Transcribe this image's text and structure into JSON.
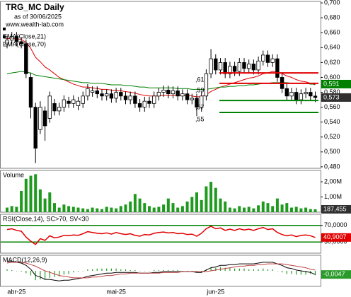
{
  "chart_data": [
    {
      "type": "candlestick",
      "title": "TRG_MC Daily",
      "subtitle": "as of 30/06/2025",
      "source": "www.wealth-lab.com",
      "categories": [
        null,
        null,
        "abr-25",
        null,
        null,
        null,
        null,
        null,
        null,
        null,
        null,
        null,
        null,
        null,
        null,
        null,
        null,
        null,
        null,
        null,
        null,
        null,
        null,
        "mai-25",
        null,
        null,
        null,
        null,
        null,
        null,
        null,
        null,
        null,
        null,
        null,
        null,
        null,
        null,
        null,
        null,
        null,
        null,
        null,
        null,
        "jun-25",
        null,
        null,
        null,
        null,
        null,
        null,
        null,
        null,
        null,
        null,
        null,
        null,
        null,
        null,
        null,
        null,
        null,
        null,
        null,
        null,
        null
      ],
      "open": [
        0.645,
        0.65,
        0.655,
        0.648,
        0.645,
        0.6,
        0.56,
        0.53,
        0.555,
        0.545,
        0.565,
        0.555,
        0.56,
        0.568,
        0.565,
        0.562,
        0.565,
        0.575,
        0.58,
        0.582,
        0.578,
        0.575,
        0.578,
        0.572,
        0.58,
        0.575,
        0.57,
        0.575,
        0.565,
        0.56,
        0.568,
        0.565,
        0.575,
        0.58,
        0.583,
        0.578,
        0.582,
        0.575,
        0.578,
        0.57,
        0.572,
        0.56,
        0.575,
        0.605,
        0.625,
        0.61,
        0.62,
        0.605,
        0.615,
        0.608,
        0.62,
        0.612,
        0.618,
        0.61,
        0.622,
        0.63,
        0.62,
        0.625,
        0.6,
        0.585,
        0.575,
        0.58,
        0.57,
        0.578,
        0.58,
        0.575
      ],
      "high": [
        0.656,
        0.661,
        0.661,
        0.654,
        0.651,
        0.606,
        0.566,
        0.568,
        0.561,
        0.581,
        0.571,
        0.566,
        0.576,
        0.574,
        0.576,
        0.574,
        0.581,
        0.591,
        0.588,
        0.588,
        0.584,
        0.584,
        0.584,
        0.586,
        0.586,
        0.581,
        0.581,
        0.581,
        0.571,
        0.574,
        0.574,
        0.581,
        0.586,
        0.589,
        0.589,
        0.588,
        0.588,
        0.584,
        0.584,
        0.578,
        0.578,
        0.581,
        0.611,
        0.638,
        0.631,
        0.626,
        0.626,
        0.621,
        0.621,
        0.626,
        0.626,
        0.624,
        0.624,
        0.628,
        0.636,
        0.636,
        0.631,
        0.631,
        0.606,
        0.591,
        0.586,
        0.586,
        0.584,
        0.586,
        0.586,
        0.581
      ],
      "low": [
        0.639,
        0.644,
        0.642,
        0.639,
        0.599,
        0.545,
        0.485,
        0.524,
        0.515,
        0.539,
        0.549,
        0.549,
        0.554,
        0.559,
        0.559,
        0.556,
        0.559,
        0.569,
        0.574,
        0.572,
        0.569,
        0.569,
        0.566,
        0.566,
        0.569,
        0.564,
        0.564,
        0.559,
        0.554,
        0.554,
        0.559,
        0.559,
        0.569,
        0.574,
        0.572,
        0.572,
        0.569,
        0.569,
        0.564,
        0.564,
        0.548,
        0.554,
        0.569,
        0.599,
        0.604,
        0.604,
        0.599,
        0.599,
        0.602,
        0.602,
        0.606,
        0.606,
        0.604,
        0.604,
        0.616,
        0.614,
        0.614,
        0.594,
        0.579,
        0.569,
        0.569,
        0.564,
        0.564,
        0.572,
        0.569,
        0.567
      ],
      "close": [
        0.65,
        0.655,
        0.648,
        0.645,
        0.605,
        0.56,
        0.505,
        0.56,
        0.535,
        0.575,
        0.555,
        0.56,
        0.57,
        0.565,
        0.57,
        0.568,
        0.575,
        0.585,
        0.582,
        0.578,
        0.575,
        0.578,
        0.572,
        0.58,
        0.575,
        0.57,
        0.575,
        0.565,
        0.56,
        0.568,
        0.565,
        0.575,
        0.58,
        0.583,
        0.578,
        0.582,
        0.575,
        0.578,
        0.57,
        0.572,
        0.56,
        0.575,
        0.605,
        0.625,
        0.61,
        0.62,
        0.605,
        0.615,
        0.608,
        0.62,
        0.612,
        0.618,
        0.61,
        0.622,
        0.63,
        0.62,
        0.625,
        0.6,
        0.585,
        0.575,
        0.58,
        0.57,
        0.578,
        0.58,
        0.575,
        0.573
      ],
      "close_label": "0,573",
      "up_color": "#009900",
      "down_color": "#e00000",
      "ylim": [
        0.478,
        0.702
      ],
      "yticks": [
        {
          "value": 0.48,
          "label": "0,480"
        },
        {
          "value": 0.5,
          "label": "0,500"
        },
        {
          "value": 0.52,
          "label": "0,520"
        },
        {
          "value": 0.54,
          "label": "0,540"
        },
        {
          "value": 0.56,
          "label": "0,560"
        },
        {
          "value": 0.58,
          "label": "0,580"
        },
        {
          "value": 0.6,
          "label": "0,600"
        },
        {
          "value": 0.62,
          "label": "0,620"
        },
        {
          "value": 0.64,
          "label": "0,640"
        },
        {
          "value": 0.66,
          "label": "0,660"
        },
        {
          "value": 0.68,
          "label": "0,680"
        },
        {
          "value": 0.7,
          "label": "0,700"
        }
      ],
      "series": [
        {
          "name": "EMA(Close,21)",
          "color": "#e00000",
          "values": [
            0.652,
            0.652,
            0.652,
            0.651,
            0.647,
            0.639,
            0.627,
            0.621,
            0.614,
            0.61,
            0.605,
            0.6,
            0.597,
            0.594,
            0.591,
            0.589,
            0.587,
            0.587,
            0.586,
            0.585,
            0.584,
            0.584,
            0.583,
            0.582,
            0.582,
            0.581,
            0.58,
            0.579,
            0.577,
            0.576,
            0.575,
            0.575,
            0.575,
            0.576,
            0.576,
            0.576,
            0.576,
            0.576,
            0.576,
            0.575,
            0.574,
            0.574,
            0.577,
            0.581,
            0.584,
            0.587,
            0.589,
            0.591,
            0.593,
            0.595,
            0.597,
            0.599,
            0.6,
            0.602,
            0.605,
            0.606,
            0.608,
            0.607,
            0.605,
            0.602,
            0.6,
            0.597,
            0.595,
            0.594,
            0.592,
            0.59
          ]
        },
        {
          "name": "EMA(Close,70)",
          "color": "#008000",
          "value_label": "0,591",
          "values": [
            0.605,
            0.606,
            0.607,
            0.608,
            0.607,
            0.606,
            0.603,
            0.602,
            0.601,
            0.6,
            0.599,
            0.598,
            0.597,
            0.596,
            0.595,
            0.594,
            0.593,
            0.593,
            0.592,
            0.592,
            0.592,
            0.591,
            0.59,
            0.59,
            0.59,
            0.589,
            0.589,
            0.588,
            0.587,
            0.587,
            0.586,
            0.586,
            0.586,
            0.586,
            0.586,
            0.586,
            0.585,
            0.585,
            0.585,
            0.584,
            0.584,
            0.584,
            0.584,
            0.585,
            0.586,
            0.587,
            0.587,
            0.588,
            0.588,
            0.589,
            0.589,
            0.59,
            0.59,
            0.591,
            0.592,
            0.592,
            0.593,
            0.593,
            0.593,
            0.593,
            0.592,
            0.592,
            0.592,
            0.592,
            0.591,
            0.591
          ]
        }
      ],
      "levels": [
        {
          "value": 0.606,
          "color": "#e00000"
        },
        {
          "value": 0.592,
          "color": "#e00000"
        },
        {
          "value": 0.569,
          "color": "#008000"
        },
        {
          "value": 0.553,
          "color": "#008000"
        }
      ],
      "annotations": [
        ",61",
        ",59",
        ",57",
        ",55"
      ]
    },
    {
      "type": "bar",
      "title": "Volume",
      "color": "#1f9a1f",
      "last_label": "187,455",
      "values": [
        300000,
        400000,
        350000,
        1400000,
        2200000,
        2400000,
        2500000,
        1500000,
        900000,
        1300000,
        600000,
        300000,
        500000,
        400000,
        350000,
        300000,
        250000,
        200000,
        300000,
        250000,
        200000,
        350000,
        300000,
        250000,
        400000,
        500000,
        700000,
        1200000,
        900000,
        600000,
        400000,
        300000,
        350000,
        500000,
        900000,
        600000,
        300000,
        400000,
        700000,
        1000000,
        1300000,
        800000,
        1700000,
        2000000,
        1600000,
        900000,
        700000,
        300000,
        250000,
        400000,
        300000,
        350000,
        250000,
        450000,
        700000,
        600000,
        400000,
        900000,
        500000,
        600000,
        300000,
        350000,
        250000,
        300000,
        200000,
        187455
      ],
      "ylim": [
        0,
        2750000
      ],
      "yticks": [
        {
          "value": 1000000,
          "label": "1,00M"
        },
        {
          "value": 2000000,
          "label": "2,00M"
        }
      ]
    },
    {
      "type": "line",
      "title": "RSI(Close,14), SC>70, SV<30",
      "color": "#e00000",
      "grid_color": "#008000",
      "last_label": "40,9007",
      "values": [
        60,
        62,
        58,
        56,
        42,
        32,
        24,
        38,
        34,
        45,
        40,
        42,
        46,
        45,
        47,
        46,
        50,
        55,
        53,
        51,
        50,
        52,
        49,
        53,
        50,
        48,
        50,
        46,
        44,
        48,
        47,
        51,
        53,
        54,
        52,
        53,
        50,
        51,
        48,
        49,
        44,
        51,
        62,
        68,
        62,
        64,
        58,
        61,
        58,
        62,
        59,
        61,
        58,
        62,
        65,
        60,
        62,
        53,
        48,
        45,
        47,
        43,
        46,
        47,
        45,
        40.9007
      ],
      "ylim": [
        3,
        97
      ],
      "yticks": [
        {
          "value": 30,
          "label": "30,0000"
        },
        {
          "value": 70,
          "label": "70,0000"
        }
      ]
    },
    {
      "type": "macd",
      "title": "MACD(12,26,9)",
      "last_label": "-0,0047",
      "series": [
        {
          "color": "#000000",
          "values": [
            0.012,
            0.012,
            0.011,
            0.01,
            0.007,
            0.002,
            -0.006,
            -0.008,
            -0.011,
            -0.011,
            -0.012,
            -0.013,
            -0.012,
            -0.012,
            -0.011,
            -0.01,
            -0.009,
            -0.007,
            -0.006,
            -0.005,
            -0.004,
            -0.003,
            -0.003,
            -0.002,
            -0.002,
            -0.002,
            -0.002,
            -0.002,
            -0.003,
            -0.003,
            -0.003,
            -0.002,
            -0.002,
            -0.001,
            -0.001,
            -0.001,
            -0.001,
            -0.001,
            -0.001,
            -0.001,
            -0.002,
            -0.002,
            0.001,
            0.004,
            0.005,
            0.007,
            0.007,
            0.008,
            0.008,
            0.009,
            0.009,
            0.009,
            0.009,
            0.01,
            0.011,
            0.011,
            0.011,
            0.009,
            0.007,
            0.004,
            0.003,
            0.001,
            0.0,
            -0.001,
            -0.002,
            -0.0047
          ]
        },
        {
          "color": "#c04040",
          "values": [
            0.01,
            0.011,
            0.011,
            0.011,
            0.01,
            0.008,
            0.006,
            0.003,
            0.0,
            -0.002,
            -0.004,
            -0.006,
            -0.007,
            -0.008,
            -0.009,
            -0.009,
            -0.009,
            -0.009,
            -0.008,
            -0.008,
            -0.007,
            -0.006,
            -0.006,
            -0.005,
            -0.004,
            -0.004,
            -0.003,
            -0.003,
            -0.003,
            -0.003,
            -0.003,
            -0.003,
            -0.003,
            -0.002,
            -0.002,
            -0.002,
            -0.002,
            -0.001,
            -0.001,
            -0.001,
            -0.001,
            -0.001,
            -0.001,
            0.0,
            0.001,
            0.002,
            0.003,
            0.004,
            0.005,
            0.006,
            0.006,
            0.007,
            0.007,
            0.008,
            0.008,
            0.009,
            0.009,
            0.009,
            0.009,
            0.008,
            0.007,
            0.006,
            0.005,
            0.004,
            0.002,
            0.001
          ]
        }
      ],
      "histogram": {
        "color": "#2a9a2a",
        "values": [
          0.002,
          0.001,
          0,
          -0.001,
          -0.003,
          -0.006,
          -0.012,
          -0.011,
          -0.011,
          -0.009,
          -0.008,
          -0.007,
          -0.005,
          -0.004,
          -0.002,
          -0.001,
          0,
          0.002,
          0.002,
          0.003,
          0.003,
          0.003,
          0.003,
          0.003,
          0.002,
          0.002,
          0.001,
          0.001,
          0,
          0,
          0,
          0.001,
          0.001,
          0.001,
          0.001,
          0.001,
          0.001,
          0,
          0,
          0,
          -0.001,
          -0.001,
          0.002,
          0.004,
          0.004,
          0.005,
          0.004,
          0.004,
          0.003,
          0.003,
          0.003,
          0.002,
          0.002,
          0.002,
          0.003,
          0.002,
          0.002,
          0,
          -0.002,
          -0.004,
          -0.004,
          -0.005,
          -0.005,
          -0.005,
          -0.004,
          -0.0057
        ]
      },
      "ylim": [
        -0.02,
        0.02
      ]
    }
  ]
}
